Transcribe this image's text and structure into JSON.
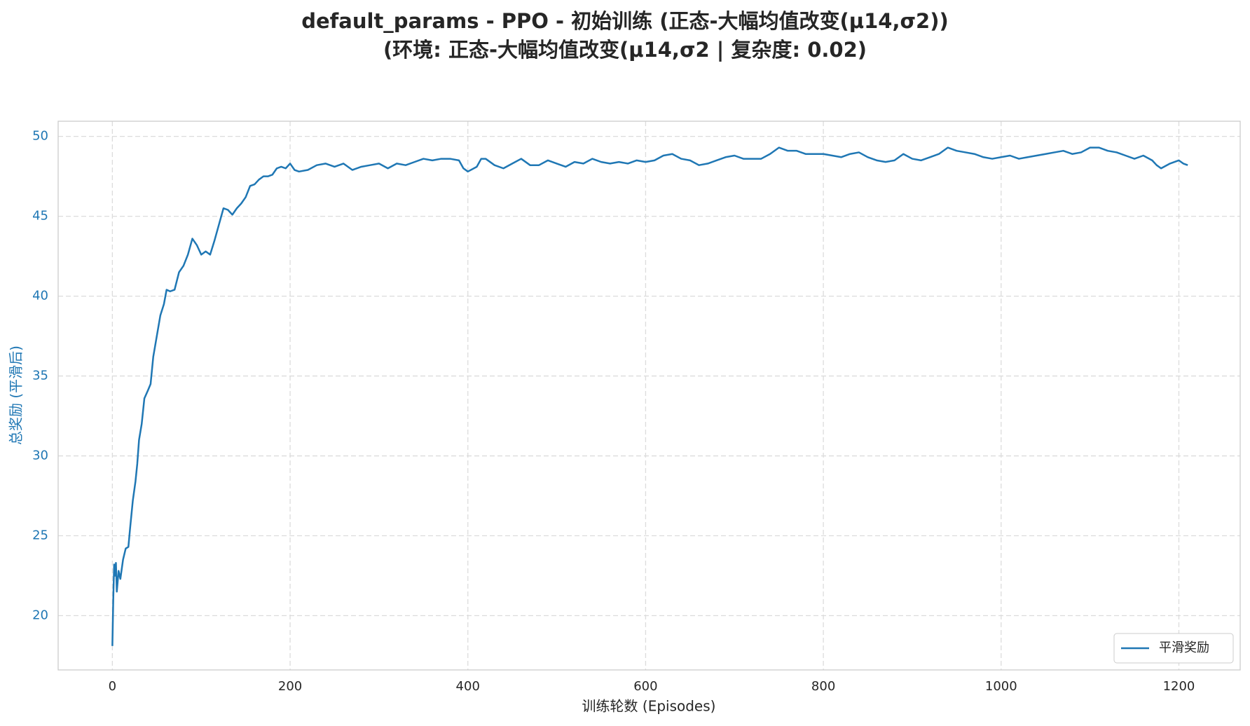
{
  "chart_data": {
    "type": "line",
    "title": "default_params - PPO - 初始训练 (正态-大幅均值改变(μ14,σ2))",
    "subtitle": "(环境: 正态-大幅均值改变(μ14,σ2 | 复杂度: 0.02)",
    "x_label": "训练轮数 (Episodes)",
    "y_label": "总奖励 (平滑后)",
    "x": [
      0,
      1,
      2,
      3,
      4,
      5,
      7,
      9,
      12,
      15,
      18,
      20,
      23,
      26,
      28,
      30,
      33,
      36,
      40,
      43,
      46,
      50,
      54,
      58,
      61,
      65,
      70,
      75,
      80,
      85,
      90,
      95,
      100,
      105,
      110,
      115,
      120,
      125,
      130,
      135,
      140,
      145,
      150,
      155,
      160,
      165,
      170,
      175,
      180,
      185,
      190,
      195,
      200,
      205,
      210,
      220,
      230,
      240,
      250,
      260,
      270,
      280,
      290,
      300,
      310,
      320,
      330,
      340,
      350,
      360,
      370,
      380,
      390,
      395,
      400,
      410,
      415,
      420,
      430,
      440,
      450,
      460,
      470,
      480,
      490,
      500,
      510,
      520,
      530,
      540,
      550,
      560,
      570,
      580,
      590,
      600,
      610,
      620,
      630,
      640,
      650,
      660,
      670,
      680,
      690,
      700,
      710,
      720,
      730,
      740,
      750,
      760,
      770,
      780,
      790,
      800,
      810,
      820,
      830,
      840,
      850,
      860,
      870,
      880,
      890,
      900,
      910,
      920,
      930,
      940,
      950,
      960,
      970,
      980,
      990,
      1000,
      1010,
      1020,
      1030,
      1040,
      1050,
      1060,
      1070,
      1080,
      1090,
      1100,
      1110,
      1120,
      1130,
      1140,
      1150,
      1160,
      1170,
      1175,
      1180,
      1190,
      1200,
      1205,
      1210
    ],
    "series": [
      {
        "name": "平滑奖励",
        "color": "#1f77b4",
        "values": [
          18.1,
          21,
          23.2,
          22.5,
          23.3,
          21.5,
          22.8,
          22.3,
          23.5,
          24.2,
          24.3,
          25.5,
          27.2,
          28.4,
          29.5,
          31,
          32,
          33.6,
          34.1,
          34.5,
          36.2,
          37.5,
          38.8,
          39.5,
          40.4,
          40.3,
          40.4,
          41.5,
          41.9,
          42.6,
          43.6,
          43.2,
          42.6,
          42.8,
          42.6,
          43.5,
          44.5,
          45.5,
          45.4,
          45.1,
          45.5,
          45.8,
          46.2,
          46.9,
          47.0,
          47.3,
          47.5,
          47.5,
          47.6,
          48.0,
          48.1,
          48.0,
          48.3,
          47.9,
          47.8,
          47.9,
          48.2,
          48.3,
          48.1,
          48.3,
          47.9,
          48.1,
          48.2,
          48.3,
          48.0,
          48.3,
          48.2,
          48.4,
          48.6,
          48.5,
          48.6,
          48.6,
          48.5,
          48.0,
          47.8,
          48.1,
          48.6,
          48.6,
          48.2,
          48.0,
          48.3,
          48.6,
          48.2,
          48.2,
          48.5,
          48.3,
          48.1,
          48.4,
          48.3,
          48.6,
          48.4,
          48.3,
          48.4,
          48.3,
          48.5,
          48.4,
          48.5,
          48.8,
          48.9,
          48.6,
          48.5,
          48.2,
          48.3,
          48.5,
          48.7,
          48.8,
          48.6,
          48.6,
          48.6,
          48.9,
          49.3,
          49.1,
          49.1,
          48.9,
          48.9,
          48.9,
          48.8,
          48.7,
          48.9,
          49.0,
          48.7,
          48.5,
          48.4,
          48.5,
          48.9,
          48.6,
          48.5,
          48.7,
          48.9,
          49.3,
          49.1,
          49.0,
          48.9,
          48.7,
          48.6,
          48.7,
          48.8,
          48.6,
          48.7,
          48.8,
          48.9,
          49.0,
          49.1,
          48.9,
          49.0,
          49.3,
          49.3,
          49.1,
          49.0,
          48.8,
          48.6,
          48.8,
          48.5,
          48.2,
          48.0,
          48.3,
          48.5,
          48.3,
          48.2
        ]
      }
    ],
    "xlim": [
      -61,
      1269
    ],
    "ylim": [
      16.6,
      50.95
    ],
    "xticks": [
      0,
      200,
      400,
      600,
      800,
      1000,
      1200
    ],
    "yticks": [
      20,
      25,
      30,
      35,
      40,
      45,
      50
    ],
    "grid": true,
    "legend": "lower right"
  }
}
